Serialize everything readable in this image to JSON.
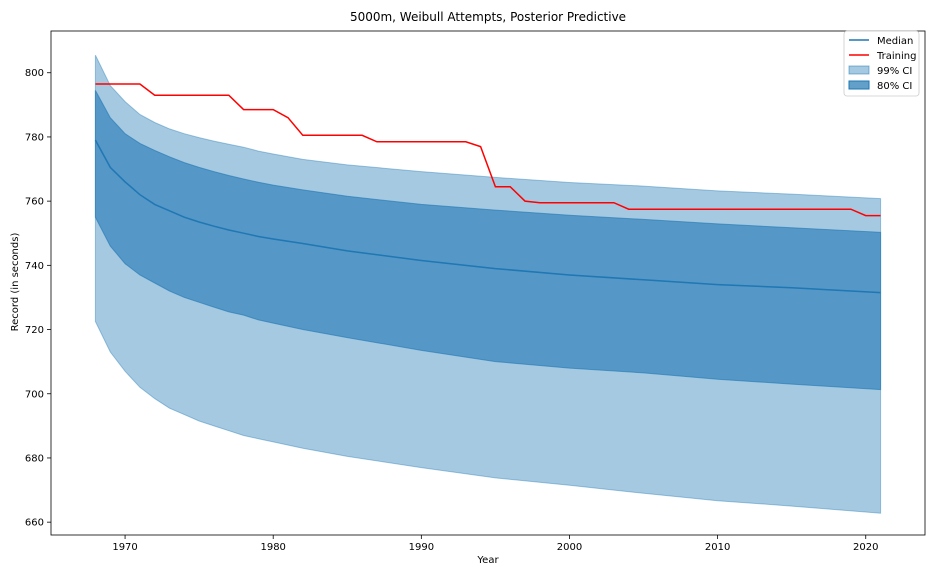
{
  "chart_data": {
    "type": "line",
    "title": "5000m, Weibull Attempts, Posterior Predictive",
    "xlabel": "Year",
    "ylabel": "Record (in seconds)",
    "xlim": [
      1965,
      2024
    ],
    "ylim": [
      656,
      813
    ],
    "xticks": [
      1970,
      1980,
      1990,
      2000,
      2010,
      2020
    ],
    "yticks": [
      660,
      680,
      700,
      720,
      740,
      760,
      780,
      800
    ],
    "grid": false,
    "legend_position": "top-right",
    "legend": [
      "Median",
      "Training",
      "99% CI",
      "80% CI"
    ],
    "colors": {
      "median": "#1f77b4",
      "training": "#ff0000",
      "ci99": "#1f77b4",
      "ci80": "#1f77b4"
    },
    "x": [
      1968,
      1969,
      1970,
      1971,
      1972,
      1973,
      1974,
      1975,
      1976,
      1977,
      1978,
      1979,
      1980,
      1982,
      1985,
      1990,
      1995,
      2000,
      2005,
      2010,
      2015,
      2021
    ],
    "series": [
      {
        "name": "Median",
        "values": [
          779,
          770.5,
          766,
          762,
          759,
          757,
          755,
          753.5,
          752.2,
          751,
          750,
          749,
          748.2,
          746.8,
          744.5,
          741.5,
          739,
          737,
          735.5,
          734,
          733,
          731.5
        ]
      },
      {
        "name": "99% CI upper",
        "values": [
          805.5,
          796,
          791,
          787,
          784.5,
          782.5,
          781,
          779.8,
          778.7,
          777.7,
          776.8,
          775.6,
          774.7,
          773,
          771.3,
          769.2,
          767.4,
          765.8,
          764.7,
          763.2,
          762.2,
          760.8
        ]
      },
      {
        "name": "99% CI lower",
        "values": [
          722.5,
          713,
          707,
          702,
          698.5,
          695.5,
          693.5,
          691.5,
          690,
          688.5,
          687,
          686,
          685,
          683,
          680.5,
          677,
          673.8,
          671.5,
          669,
          666.7,
          665,
          662.8
        ]
      },
      {
        "name": "80% CI upper",
        "values": [
          794.5,
          786,
          781,
          778,
          775.8,
          773.8,
          772,
          770.5,
          769.2,
          768,
          766.9,
          765.9,
          765,
          763.5,
          761.5,
          759,
          757.2,
          755.6,
          754.3,
          752.9,
          751.7,
          750.3
        ]
      },
      {
        "name": "80% CI lower",
        "values": [
          755,
          746,
          740.5,
          737,
          734.5,
          732,
          730,
          728.5,
          727,
          725.5,
          724.5,
          723,
          722,
          720,
          717.5,
          713.5,
          710,
          708,
          706.5,
          704.5,
          703,
          701.3
        ]
      }
    ],
    "training": {
      "x": [
        1968,
        1971,
        1972,
        1977,
        1978,
        1980,
        1981,
        1982,
        1986,
        1987,
        1993,
        1994,
        1995,
        1996,
        1997,
        1998,
        2003,
        2004,
        2019,
        2020,
        2021
      ],
      "y": [
        796.5,
        796.5,
        793,
        793,
        788.5,
        788.5,
        786,
        780.5,
        780.5,
        778.5,
        778.5,
        777,
        764.5,
        764.5,
        760,
        759.5,
        759.5,
        757.5,
        757.5,
        755.5,
        755.5
      ]
    }
  }
}
